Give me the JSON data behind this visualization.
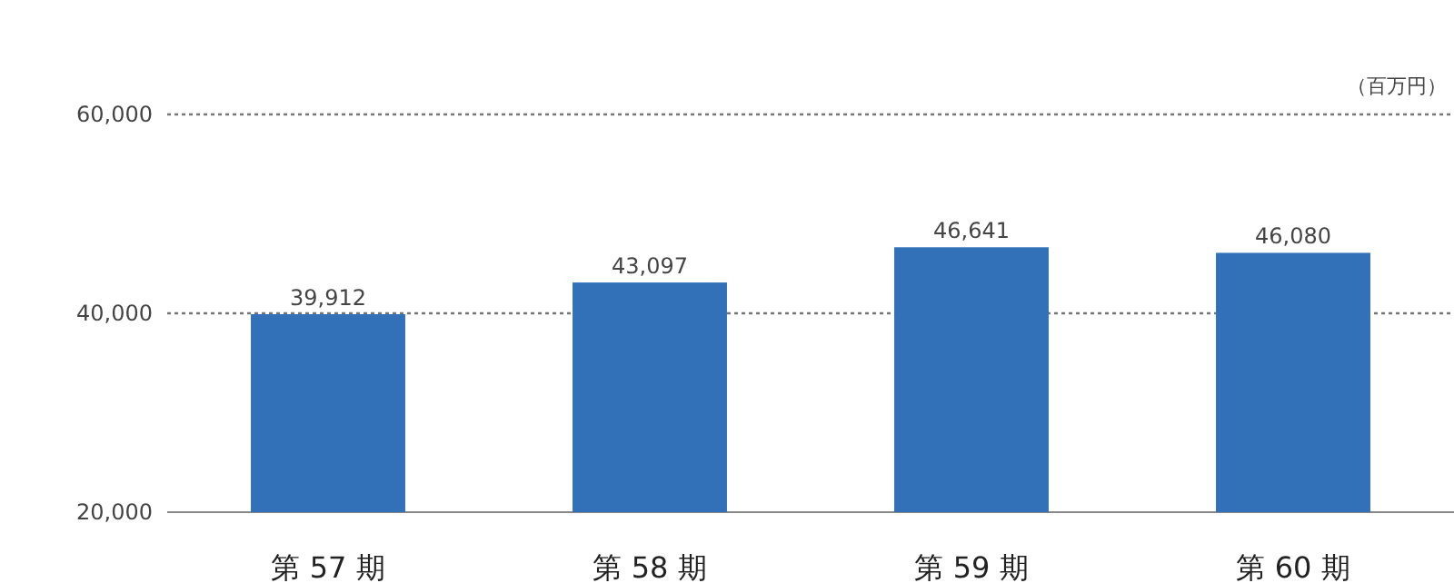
{
  "chart_data": {
    "type": "bar",
    "ylabel": "（百万円）",
    "categories": [
      "第 57 期",
      "第 58 期",
      "第 59 期",
      "第 60 期"
    ],
    "values": [
      39912,
      43097,
      46641,
      46080
    ],
    "value_labels": [
      "39,912",
      "43,097",
      "46,641",
      "46,080"
    ],
    "color": "#3271b7",
    "ylim": [
      20000,
      60000
    ],
    "yticks": [
      {
        "value": 20000,
        "label": "20,000"
      },
      {
        "value": 40000,
        "label": "40,000"
      },
      {
        "value": 60000,
        "label": "60,000"
      }
    ],
    "grid": "y"
  }
}
